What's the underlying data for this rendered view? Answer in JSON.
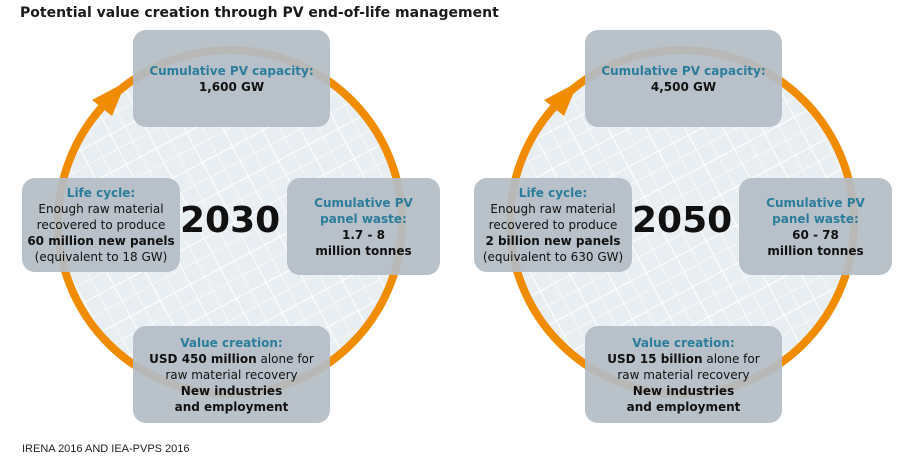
{
  "title": "Potential value creation through PV end-of-life management",
  "diagrams": [
    {
      "year": "2030",
      "capacity": {
        "heading": [
          "Cumulative PV capacity:"
        ],
        "body": [
          [
            {
              "text": "1,600 GW",
              "bold": true
            }
          ]
        ]
      },
      "waste": {
        "heading": [
          "Cumulative PV",
          "panel waste:"
        ],
        "body": [
          [
            {
              "text": "1.7 - 8",
              "bold": true
            }
          ],
          [
            {
              "text": "million tonnes",
              "bold": true
            }
          ]
        ]
      },
      "life_cycle": {
        "heading": [
          "Life cycle:"
        ],
        "body": [
          [
            {
              "text": "Enough raw material"
            }
          ],
          [
            {
              "text": "recovered to produce"
            }
          ],
          [
            {
              "text": "60 million new panels",
              "bold": true
            }
          ],
          [
            {
              "text": "(equivalent to 18 GW)"
            }
          ]
        ]
      },
      "value_creation": {
        "heading": [
          "Value creation:"
        ],
        "body": [
          [
            {
              "text": "USD 450 million",
              "bold": true
            },
            {
              "text": " alone for"
            }
          ],
          [
            {
              "text": "raw material recovery"
            }
          ],
          [
            {
              "text": "New industries",
              "bold": true
            }
          ],
          [
            {
              "text": "and employment",
              "bold": true
            }
          ]
        ]
      }
    },
    {
      "year": "2050",
      "capacity": {
        "heading": [
          "Cumulative PV capacity:"
        ],
        "body": [
          [
            {
              "text": "4,500 GW",
              "bold": true
            }
          ]
        ]
      },
      "waste": {
        "heading": [
          "Cumulative PV",
          "panel waste:"
        ],
        "body": [
          [
            {
              "text": "60 - 78",
              "bold": true
            }
          ],
          [
            {
              "text": "million tonnes",
              "bold": true
            }
          ]
        ]
      },
      "life_cycle": {
        "heading": [
          "Life cycle:"
        ],
        "body": [
          [
            {
              "text": "Enough raw material"
            }
          ],
          [
            {
              "text": "recovered to produce"
            }
          ],
          [
            {
              "text": "2 billion new panels",
              "bold": true
            }
          ],
          [
            {
              "text": "(equivalent to 630 GW)"
            }
          ]
        ]
      },
      "value_creation": {
        "heading": [
          "Value creation:"
        ],
        "body": [
          [
            {
              "text": "USD 15 billion",
              "bold": true
            },
            {
              "text": " alone for"
            }
          ],
          [
            {
              "text": "raw material recovery"
            }
          ],
          [
            {
              "text": "New industries",
              "bold": true
            }
          ],
          [
            {
              "text": "and employment",
              "bold": true
            }
          ]
        ]
      }
    }
  ],
  "source": "IRENA 2016 AND IEA-PVPS 2016"
}
